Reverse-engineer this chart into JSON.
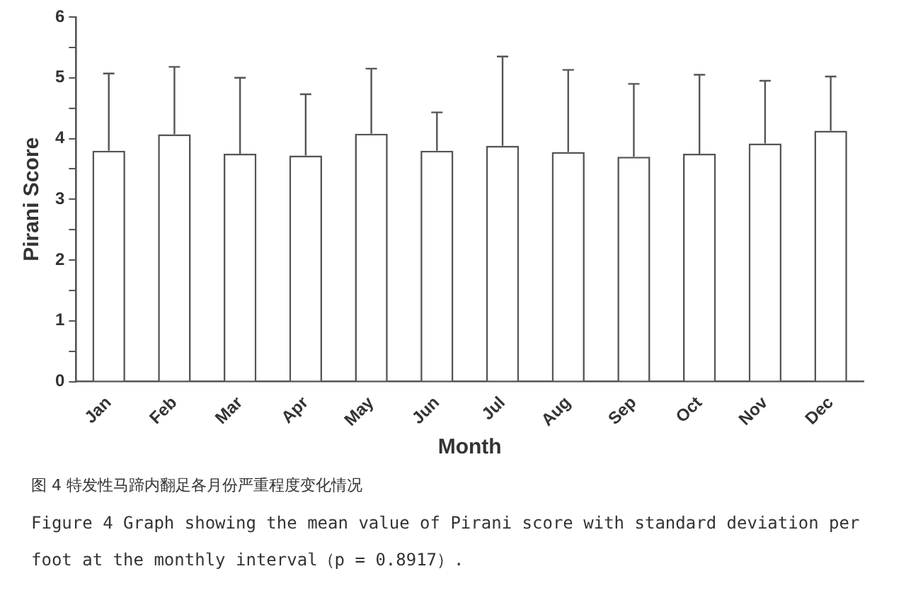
{
  "chart_data": {
    "type": "bar",
    "xlabel": "Month",
    "ylabel": "Pirani Score",
    "categories": [
      "Jan",
      "Feb",
      "Mar",
      "Apr",
      "May",
      "Jun",
      "Jul",
      "Aug",
      "Sep",
      "Oct",
      "Nov",
      "Dec"
    ],
    "values": [
      3.8,
      4.07,
      3.75,
      3.72,
      4.08,
      3.8,
      3.88,
      3.78,
      3.7,
      3.75,
      3.92,
      4.13
    ],
    "errors": [
      [
        3.8,
        5.07
      ],
      [
        4.07,
        5.18
      ],
      [
        3.75,
        5.0
      ],
      [
        3.72,
        4.73
      ],
      [
        4.08,
        5.15
      ],
      [
        3.8,
        4.43
      ],
      [
        3.88,
        5.35
      ],
      [
        3.78,
        5.13
      ],
      [
        3.7,
        4.9
      ],
      [
        3.75,
        5.05
      ],
      [
        3.92,
        4.95
      ],
      [
        4.13,
        5.02
      ]
    ],
    "color": "#ffffff",
    "ylim": [
      0,
      6
    ],
    "yticks": [
      0,
      {
        "value": 0.5,
        "label": null
      },
      1,
      {
        "value": 1.5,
        "label": null
      },
      2,
      {
        "value": 2.5,
        "label": null
      },
      3,
      {
        "value": 3.5,
        "label": null
      },
      4,
      {
        "value": 4.5,
        "label": null
      },
      5,
      {
        "value": 5.5,
        "label": null
      },
      6
    ],
    "grid": false,
    "legend": false,
    "annotations": [
      "图 4 特发性马蹄内翻足各月份严重程度变化情况",
      "Figure 4 Graph showing the mean value of Pirani score with standard deviation per foot at the monthly interval（p = 0.8917）."
    ]
  }
}
